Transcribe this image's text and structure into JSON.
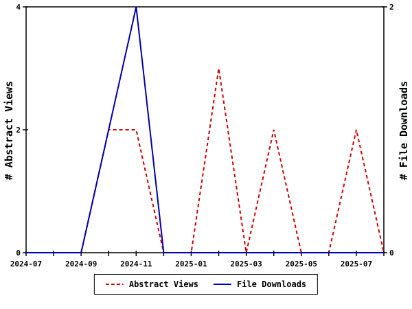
{
  "chart_data": {
    "type": "line",
    "title": "",
    "x": [
      "2024-07",
      "2024-08",
      "2024-09",
      "2024-10",
      "2024-11",
      "2024-12",
      "2025-01",
      "2025-02",
      "2025-03",
      "2025-04",
      "2025-05",
      "2025-06",
      "2025-07",
      "2025-08"
    ],
    "x_labeled_indices": [
      0,
      2,
      4,
      6,
      8,
      10,
      12
    ],
    "left_axis": {
      "label": "# Abstract Views",
      "range": [
        0,
        4
      ],
      "ticks": [
        0,
        2,
        4
      ]
    },
    "right_axis": {
      "label": "# File Downloads",
      "range": [
        0,
        2
      ],
      "ticks": [
        0,
        2
      ]
    },
    "grid": false,
    "legend_position": "bottom-center",
    "background_color": "#ffffff",
    "axis_color": "#000000",
    "series": [
      {
        "name": "Abstract Views",
        "axis": "left",
        "style": "dashed",
        "color": "#cc0000",
        "values": [
          0,
          0,
          0,
          2,
          2,
          0,
          0,
          3,
          0,
          2,
          0,
          0,
          2,
          0
        ]
      },
      {
        "name": "File Downloads",
        "axis": "right",
        "style": "solid",
        "color": "#0000aa",
        "values": [
          0,
          0,
          0,
          1,
          2,
          0,
          0,
          0,
          0,
          0,
          0,
          0,
          0,
          0
        ]
      }
    ]
  }
}
